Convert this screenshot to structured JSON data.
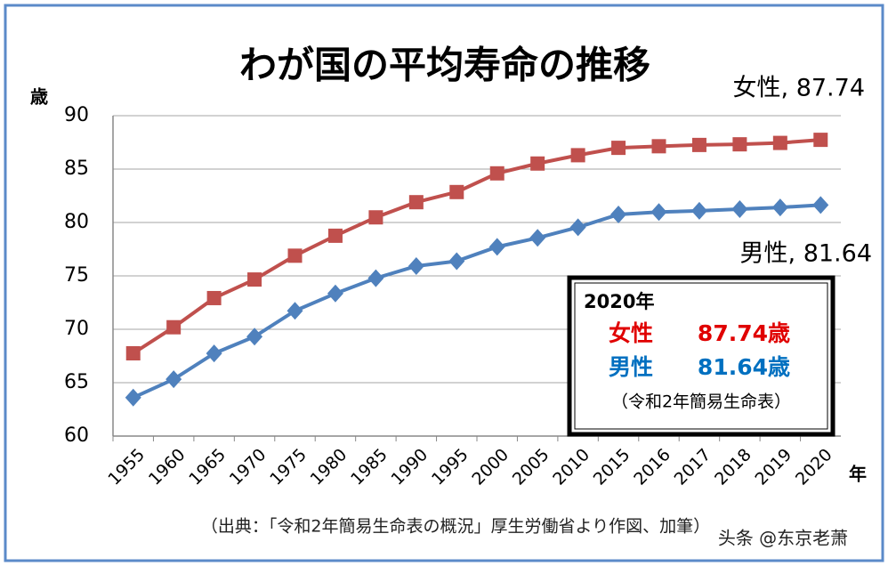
{
  "chart_data": {
    "type": "line",
    "title": "わが国の平均寿命の推移",
    "y_label": "歳",
    "x_label": "年",
    "categories": [
      "1955",
      "1960",
      "1965",
      "1970",
      "1975",
      "1980",
      "1985",
      "1990",
      "1995",
      "2000",
      "2005",
      "2010",
      "2015",
      "2016",
      "2017",
      "2018",
      "2019",
      "2020"
    ],
    "series": [
      {
        "name": "女性",
        "color": "#c0504d",
        "marker": "square",
        "values": [
          67.75,
          70.19,
          72.92,
          74.66,
          76.89,
          78.76,
          80.48,
          81.9,
          82.85,
          84.6,
          85.52,
          86.3,
          86.99,
          87.14,
          87.26,
          87.32,
          87.45,
          87.74
        ]
      },
      {
        "name": "男性",
        "color": "#4f81bd",
        "marker": "diamond",
        "values": [
          63.6,
          65.32,
          67.74,
          69.31,
          71.73,
          73.35,
          74.78,
          75.92,
          76.38,
          77.72,
          78.56,
          79.55,
          80.75,
          80.98,
          81.09,
          81.25,
          81.41,
          81.64
        ]
      }
    ],
    "ylim": [
      60,
      90
    ],
    "yticks": [
      60,
      65,
      70,
      75,
      80,
      85,
      90
    ],
    "grid": true,
    "annotations": [
      {
        "text": "女性, 87.74"
      },
      {
        "text": "男性, 81.64"
      }
    ],
    "summary_box": {
      "title": "2020年",
      "rows": [
        {
          "label": "女性",
          "value": "87.74歳",
          "color": "#e00000"
        },
        {
          "label": "男性",
          "value": "81.64歳",
          "color": "#0070c0"
        }
      ],
      "note": "（令和2年簡易生命表）"
    },
    "source": "（出典：「令和2年簡易生命表の概況」厚生労働省より作図、加筆）",
    "watermark": "头条 @东京老萧"
  }
}
